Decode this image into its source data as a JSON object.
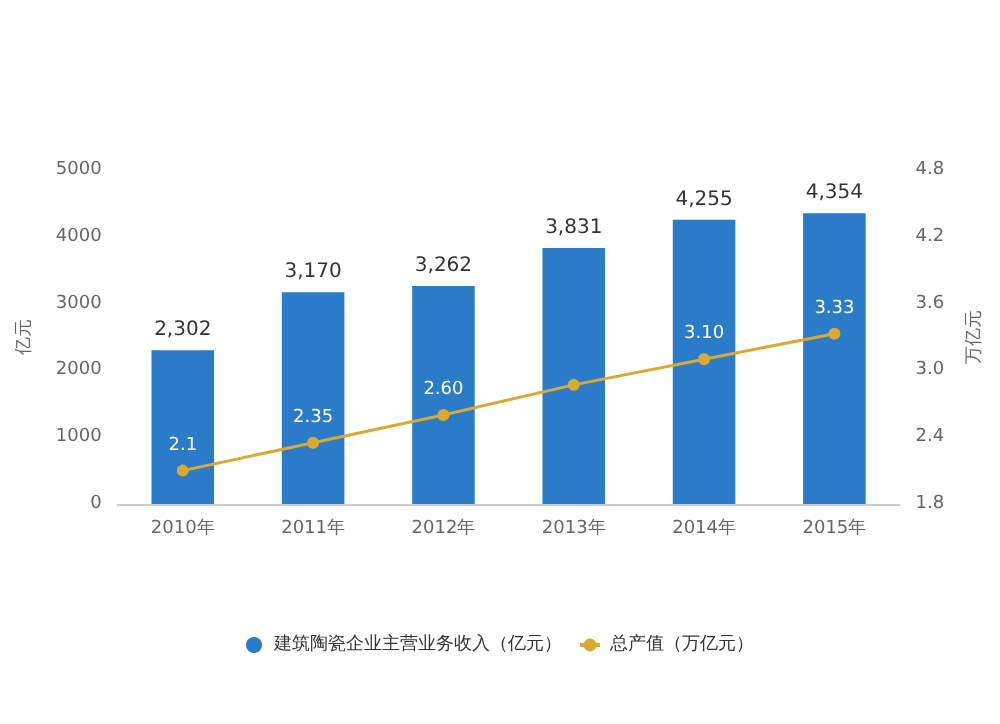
{
  "chart_data": {
    "type": "bar",
    "categories": [
      "2010年",
      "2011年",
      "2012年",
      "2013年",
      "2014年",
      "2015年"
    ],
    "series": [
      {
        "name": "建筑陶瓷企业主营业务收入（亿元）",
        "color": "#2a7bc8",
        "values": [
          2302,
          3170,
          3262,
          3831,
          4255,
          4354
        ],
        "value_labels": [
          "2,302",
          "3,170",
          "3,262",
          "3,831",
          "4,255",
          "4,354"
        ]
      },
      {
        "name": "总产值（万亿元）",
        "type": "line",
        "axis": "y2",
        "color": "#d9a934",
        "values": [
          2.1,
          2.35,
          2.6,
          2.87,
          3.1,
          3.33
        ],
        "value_labels": [
          "2.1",
          "2.35",
          "2.60",
          null,
          "3.10",
          "3.33"
        ]
      }
    ],
    "ylabel": "亿元",
    "y2label": "万亿元",
    "ylim": [
      0,
      5000
    ],
    "yticks": [
      0,
      1000,
      2000,
      3000,
      4000,
      5000
    ],
    "y2lim": [
      1.8,
      4.8
    ],
    "y2ticks": [
      1.8,
      2.4,
      {
        "value": 3,
        "label": "3.0"
      },
      3.6,
      4.2,
      4.8
    ],
    "grid": false,
    "legend": "bottom",
    "marker": "circle"
  }
}
